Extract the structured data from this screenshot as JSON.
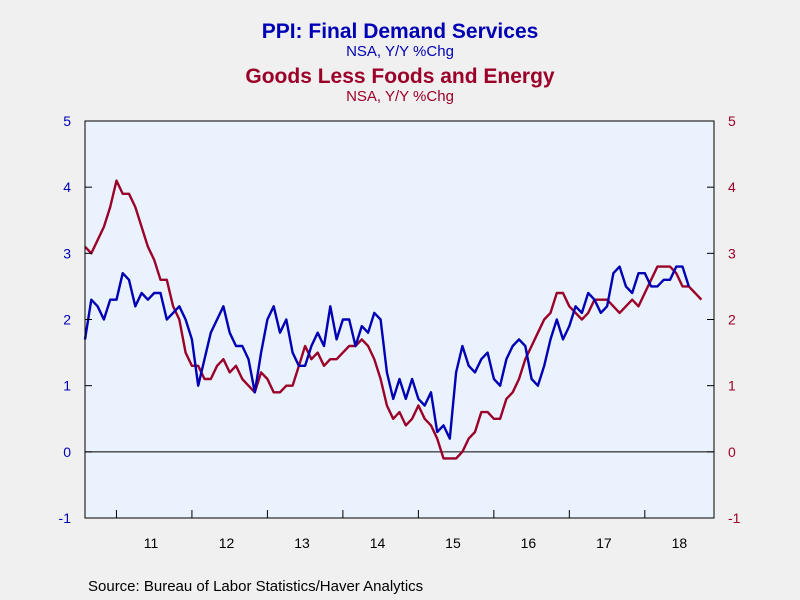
{
  "colors": {
    "series1": "#0000b4",
    "series2": "#9b0028",
    "plot_bg": "#eaf3fd",
    "page_bg": "#f0f0f0"
  },
  "source": "Source:  Bureau of Labor Statistics/Haver Analytics",
  "chart_data": {
    "type": "line",
    "title": "PPI: Final Demand Services",
    "subtitle": "NSA, Y/Y %Chg",
    "title2": "Goods Less Foods and Energy",
    "subtitle2": "NSA, Y/Y %Chg",
    "x_start": "2010-08",
    "frequency": "monthly",
    "x_tick_labels": [
      "11",
      "12",
      "13",
      "14",
      "15",
      "16",
      "17",
      "18"
    ],
    "y_ticks": [
      "-1",
      "0",
      "1",
      "2",
      "3",
      "4",
      "5"
    ],
    "ylim": [
      -1,
      5
    ],
    "y_left_ticks": [
      -1,
      0,
      1,
      2,
      3,
      4,
      5
    ],
    "y_right_ticks": [
      -1,
      0,
      1,
      2,
      3,
      4,
      5
    ],
    "zero_line": true,
    "grid": false,
    "series": [
      {
        "name": "PPI: Final Demand Services",
        "axis": "left",
        "values": [
          1.7,
          2.3,
          2.2,
          2.0,
          2.3,
          2.3,
          2.7,
          2.6,
          2.2,
          2.4,
          2.3,
          2.4,
          2.4,
          2.0,
          2.1,
          2.2,
          2.0,
          1.7,
          1.0,
          1.4,
          1.8,
          2.0,
          2.2,
          1.8,
          1.6,
          1.6,
          1.4,
          0.9,
          1.5,
          2.0,
          2.2,
          1.8,
          2.0,
          1.5,
          1.3,
          1.3,
          1.6,
          1.8,
          1.6,
          2.2,
          1.7,
          2.0,
          2.0,
          1.6,
          1.9,
          1.8,
          2.1,
          2.0,
          1.2,
          0.8,
          1.1,
          0.8,
          1.1,
          0.8,
          0.7,
          0.9,
          0.3,
          0.4,
          0.2,
          1.2,
          1.6,
          1.3,
          1.2,
          1.4,
          1.5,
          1.1,
          1.0,
          1.4,
          1.6,
          1.7,
          1.6,
          1.1,
          1.0,
          1.3,
          1.7,
          2.0,
          1.7,
          1.9,
          2.2,
          2.1,
          2.4,
          2.3,
          2.1,
          2.2,
          2.7,
          2.8,
          2.5,
          2.4,
          2.7,
          2.7,
          2.5,
          2.5,
          2.6,
          2.6,
          2.8,
          2.8,
          2.5
        ]
      },
      {
        "name": "Goods Less Foods and Energy",
        "axis": "right",
        "values": [
          3.1,
          3.0,
          3.2,
          3.4,
          3.7,
          4.1,
          3.9,
          3.9,
          3.7,
          3.4,
          3.1,
          2.9,
          2.6,
          2.6,
          2.2,
          2.0,
          1.5,
          1.3,
          1.3,
          1.1,
          1.1,
          1.3,
          1.4,
          1.2,
          1.3,
          1.1,
          1.0,
          0.9,
          1.2,
          1.1,
          0.9,
          0.9,
          1.0,
          1.0,
          1.3,
          1.6,
          1.4,
          1.5,
          1.3,
          1.4,
          1.4,
          1.5,
          1.6,
          1.6,
          1.7,
          1.6,
          1.4,
          1.1,
          0.7,
          0.5,
          0.6,
          0.4,
          0.5,
          0.7,
          0.5,
          0.4,
          0.2,
          -0.1,
          -0.1,
          -0.1,
          0.0,
          0.2,
          0.3,
          0.6,
          0.6,
          0.5,
          0.5,
          0.8,
          0.9,
          1.1,
          1.4,
          1.6,
          1.8,
          2.0,
          2.1,
          2.4,
          2.4,
          2.2,
          2.1,
          2.0,
          2.1,
          2.3,
          2.3,
          2.3,
          2.2,
          2.1,
          2.2,
          2.3,
          2.2,
          2.4,
          2.6,
          2.8,
          2.8,
          2.8,
          2.7,
          2.5,
          2.5,
          2.4,
          2.3
        ]
      }
    ]
  }
}
